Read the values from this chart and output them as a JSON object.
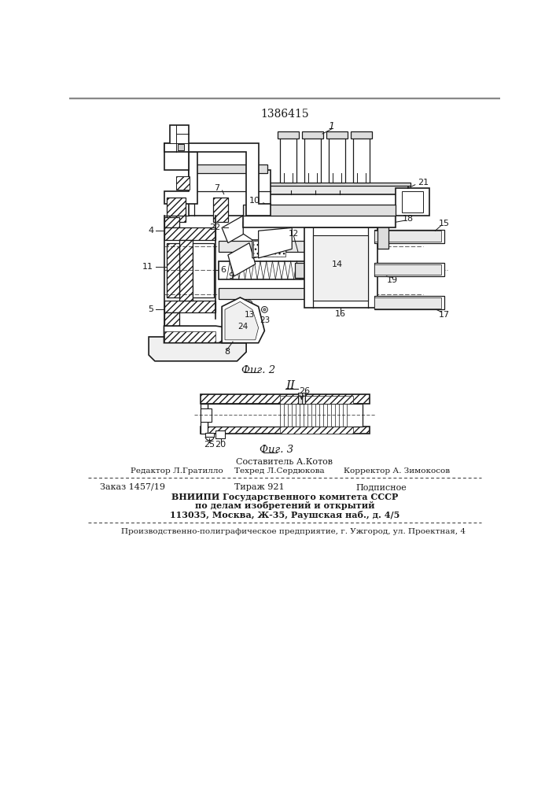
{
  "patent_number": "1386415",
  "fig2_caption": "Фиг. 2",
  "fig3_caption": "Фиг. 3",
  "author_line": "Составитель А.Котов",
  "editor_line": "Редактор Л.Гратилло",
  "techred_line": "Техред Л.Сердюкова",
  "corrector_line": "Корректор А. Зимокосов",
  "order_line": "Заказ 1457/19",
  "tirazh_line": "Тираж 921",
  "podpisnoe_line": "Подписное",
  "vnipi_line1": "ВНИИПИ Государственного комитета СССР",
  "vnipi_line2": "по делам изобретений и открытий",
  "vnipi_line3": "113035, Москва, Ж-35, Раушская наб., д. 4/5",
  "polugraf_line": "Производственно-полиграфическое предприятие, г. Ужгород, ул. Проектная, 4",
  "bg_color": "#ffffff",
  "lc": "#1a1a1a",
  "hatch_color": "#555555"
}
